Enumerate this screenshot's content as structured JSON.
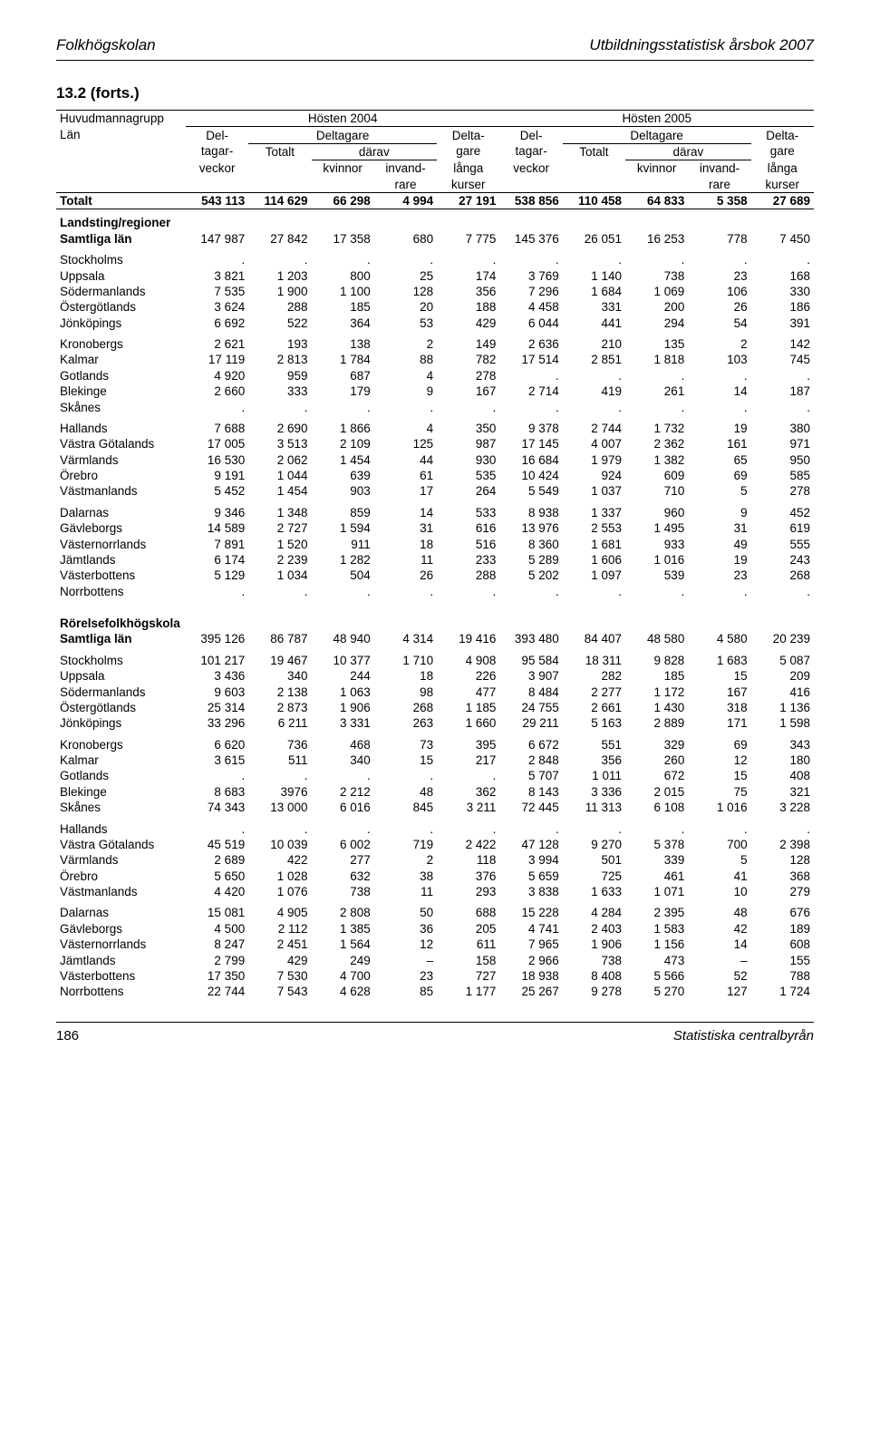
{
  "header": {
    "left": "Folkhögskolan",
    "right": "Utbildningsstatistisk årsbok 2007"
  },
  "title": "13.2 (forts.)",
  "footer": {
    "page": "186",
    "source": "Statistiska centralbyrån"
  },
  "colheads": {
    "group_l": "Huvudmannagrupp",
    "group_r": "Län",
    "year_a": "Hösten 2004",
    "year_b": "Hösten 2005",
    "deltagarveckor_a": "Del-",
    "deltagarveckor_b": "tagar-",
    "deltagarveckor_c": "veckor",
    "deltagare": "Deltagare",
    "totalt": "Totalt",
    "darav": "därav",
    "kvinnor": "kvinnor",
    "invand_a": "invand-",
    "invand_b": "rare",
    "deltagare_langa_a": "Delta-",
    "deltagare_langa_b": "gare",
    "deltagare_langa_c": "långa",
    "deltagare_langa_d": "kurser"
  },
  "rows": {
    "totalt": {
      "label": "Totalt",
      "v": [
        "543 113",
        "114 629",
        "66 298",
        "4 994",
        "27 191",
        "538 856",
        "110 458",
        "64 833",
        "5 358",
        "27 689"
      ]
    },
    "landsting_hdr": {
      "label": "Landsting/regioner"
    },
    "landsting_samtliga": {
      "label": "Samtliga län",
      "v": [
        "147 987",
        "27 842",
        "17 358",
        "680",
        "7 775",
        "145 376",
        "26 051",
        "16 253",
        "778",
        "7 450"
      ]
    },
    "lr": [
      {
        "label": "Stockholms",
        "v": [
          ".",
          ".",
          ".",
          ".",
          ".",
          ".",
          ".",
          ".",
          ".",
          "."
        ]
      },
      {
        "label": "Uppsala",
        "v": [
          "3 821",
          "1 203",
          "800",
          "25",
          "174",
          "3 769",
          "1 140",
          "738",
          "23",
          "168"
        ]
      },
      {
        "label": "Södermanlands",
        "v": [
          "7 535",
          "1 900",
          "1 100",
          "128",
          "356",
          "7 296",
          "1 684",
          "1 069",
          "106",
          "330"
        ]
      },
      {
        "label": "Östergötlands",
        "v": [
          "3 624",
          "288",
          "185",
          "20",
          "188",
          "4 458",
          "331",
          "200",
          "26",
          "186"
        ]
      },
      {
        "label": "Jönköpings",
        "v": [
          "6 692",
          "522",
          "364",
          "53",
          "429",
          "6 044",
          "441",
          "294",
          "54",
          "391"
        ]
      },
      {
        "label": "Kronobergs",
        "v": [
          "2 621",
          "193",
          "138",
          "2",
          "149",
          "2 636",
          "210",
          "135",
          "2",
          "142"
        ]
      },
      {
        "label": "Kalmar",
        "v": [
          "17 119",
          "2 813",
          "1 784",
          "88",
          "782",
          "17 514",
          "2 851",
          "1 818",
          "103",
          "745"
        ]
      },
      {
        "label": "Gotlands",
        "v": [
          "4 920",
          "959",
          "687",
          "4",
          "278",
          ".",
          ".",
          ".",
          ".",
          "."
        ]
      },
      {
        "label": "Blekinge",
        "v": [
          "2 660",
          "333",
          "179",
          "9",
          "167",
          "2 714",
          "419",
          "261",
          "14",
          "187"
        ]
      },
      {
        "label": "Skånes",
        "v": [
          ".",
          ".",
          ".",
          ".",
          ".",
          ".",
          ".",
          ".",
          ".",
          "."
        ]
      },
      {
        "label": "Hallands",
        "v": [
          "7 688",
          "2 690",
          "1 866",
          "4",
          "350",
          "9 378",
          "2 744",
          "1 732",
          "19",
          "380"
        ]
      },
      {
        "label": "Västra Götalands",
        "v": [
          "17 005",
          "3 513",
          "2 109",
          "125",
          "987",
          "17 145",
          "4 007",
          "2 362",
          "161",
          "971"
        ]
      },
      {
        "label": "Värmlands",
        "v": [
          "16 530",
          "2 062",
          "1 454",
          "44",
          "930",
          "16 684",
          "1 979",
          "1 382",
          "65",
          "950"
        ]
      },
      {
        "label": "Örebro",
        "v": [
          "9 191",
          "1 044",
          "639",
          "61",
          "535",
          "10 424",
          "924",
          "609",
          "69",
          "585"
        ]
      },
      {
        "label": "Västmanlands",
        "v": [
          "5 452",
          "1 454",
          "903",
          "17",
          "264",
          "5 549",
          "1 037",
          "710",
          "5",
          "278"
        ]
      },
      {
        "label": "Dalarnas",
        "v": [
          "9 346",
          "1 348",
          "859",
          "14",
          "533",
          "8 938",
          "1 337",
          "960",
          "9",
          "452"
        ]
      },
      {
        "label": "Gävleborgs",
        "v": [
          "14 589",
          "2 727",
          "1 594",
          "31",
          "616",
          "13 976",
          "2 553",
          "1 495",
          "31",
          "619"
        ]
      },
      {
        "label": "Västernorrlands",
        "v": [
          "7 891",
          "1 520",
          "911",
          "18",
          "516",
          "8 360",
          "1 681",
          "933",
          "49",
          "555"
        ]
      },
      {
        "label": "Jämtlands",
        "v": [
          "6 174",
          "2 239",
          "1 282",
          "11",
          "233",
          "5 289",
          "1 606",
          "1 016",
          "19",
          "243"
        ]
      },
      {
        "label": "Västerbottens",
        "v": [
          "5 129",
          "1 034",
          "504",
          "26",
          "288",
          "5 202",
          "1 097",
          "539",
          "23",
          "268"
        ]
      },
      {
        "label": "Norrbottens",
        "v": [
          ".",
          ".",
          ".",
          ".",
          ".",
          ".",
          ".",
          ".",
          ".",
          "."
        ]
      }
    ],
    "rorelse_hdr": {
      "label": "Rörelsefolkhögskola"
    },
    "rorelse_samtliga": {
      "label": "Samtliga län",
      "v": [
        "395 126",
        "86 787",
        "48 940",
        "4 314",
        "19 416",
        "393 480",
        "84 407",
        "48 580",
        "4 580",
        "20 239"
      ]
    },
    "rr": [
      {
        "label": "Stockholms",
        "v": [
          "101 217",
          "19 467",
          "10 377",
          "1 710",
          "4 908",
          "95 584",
          "18 311",
          "9 828",
          "1 683",
          "5 087"
        ]
      },
      {
        "label": "Uppsala",
        "v": [
          "3 436",
          "340",
          "244",
          "18",
          "226",
          "3 907",
          "282",
          "185",
          "15",
          "209"
        ]
      },
      {
        "label": "Södermanlands",
        "v": [
          "9 603",
          "2 138",
          "1 063",
          "98",
          "477",
          "8 484",
          "2 277",
          "1 172",
          "167",
          "416"
        ]
      },
      {
        "label": "Östergötlands",
        "v": [
          "25 314",
          "2 873",
          "1 906",
          "268",
          "1 185",
          "24 755",
          "2 661",
          "1 430",
          "318",
          "1 136"
        ]
      },
      {
        "label": "Jönköpings",
        "v": [
          "33 296",
          "6 211",
          "3 331",
          "263",
          "1 660",
          "29 211",
          "5 163",
          "2 889",
          "171",
          "1 598"
        ]
      },
      {
        "label": "Kronobergs",
        "v": [
          "6 620",
          "736",
          "468",
          "73",
          "395",
          "6 672",
          "551",
          "329",
          "69",
          "343"
        ]
      },
      {
        "label": "Kalmar",
        "v": [
          "3 615",
          "511",
          "340",
          "15",
          "217",
          "2 848",
          "356",
          "260",
          "12",
          "180"
        ]
      },
      {
        "label": "Gotlands",
        "v": [
          ".",
          ".",
          ".",
          ".",
          ".",
          "5 707",
          "1 011",
          "672",
          "15",
          "408"
        ]
      },
      {
        "label": "Blekinge",
        "v": [
          "8 683",
          "3976",
          "2 212",
          "48",
          "362",
          "8 143",
          "3 336",
          "2 015",
          "75",
          "321"
        ]
      },
      {
        "label": "Skånes",
        "v": [
          "74 343",
          "13 000",
          "6 016",
          "845",
          "3 211",
          "72 445",
          "11 313",
          "6 108",
          "1 016",
          "3 228"
        ]
      },
      {
        "label": "Hallands",
        "v": [
          ".",
          ".",
          ".",
          ".",
          ".",
          ".",
          ".",
          ".",
          ".",
          "."
        ]
      },
      {
        "label": "Västra Götalands",
        "v": [
          "45 519",
          "10 039",
          "6 002",
          "719",
          "2 422",
          "47 128",
          "9 270",
          "5 378",
          "700",
          "2 398"
        ]
      },
      {
        "label": "Värmlands",
        "v": [
          "2 689",
          "422",
          "277",
          "2",
          "118",
          "3 994",
          "501",
          "339",
          "5",
          "128"
        ]
      },
      {
        "label": "Örebro",
        "v": [
          "5 650",
          "1 028",
          "632",
          "38",
          "376",
          "5 659",
          "725",
          "461",
          "41",
          "368"
        ]
      },
      {
        "label": "Västmanlands",
        "v": [
          "4 420",
          "1 076",
          "738",
          "11",
          "293",
          "3 838",
          "1 633",
          "1 071",
          "10",
          "279"
        ]
      },
      {
        "label": "Dalarnas",
        "v": [
          "15 081",
          "4 905",
          "2 808",
          "50",
          "688",
          "15 228",
          "4 284",
          "2 395",
          "48",
          "676"
        ]
      },
      {
        "label": "Gävleborgs",
        "v": [
          "4 500",
          "2 112",
          "1 385",
          "36",
          "205",
          "4 741",
          "2 403",
          "1 583",
          "42",
          "189"
        ]
      },
      {
        "label": "Västernorrlands",
        "v": [
          "8 247",
          "2 451",
          "1 564",
          "12",
          "611",
          "7 965",
          "1 906",
          "1 156",
          "14",
          "608"
        ]
      },
      {
        "label": "Jämtlands",
        "v": [
          "2 799",
          "429",
          "249",
          "–",
          "158",
          "2 966",
          "738",
          "473",
          "–",
          "155"
        ]
      },
      {
        "label": "Västerbottens",
        "v": [
          "17 350",
          "7 530",
          "4 700",
          "23",
          "727",
          "18 938",
          "8 408",
          "5 566",
          "52",
          "788"
        ]
      },
      {
        "label": "Norrbottens",
        "v": [
          "22 744",
          "7 543",
          "4 628",
          "85",
          "1 177",
          "25 267",
          "9 278",
          "5 270",
          "127",
          "1 724"
        ]
      }
    ]
  },
  "group_breaks": [
    5,
    10,
    15
  ]
}
